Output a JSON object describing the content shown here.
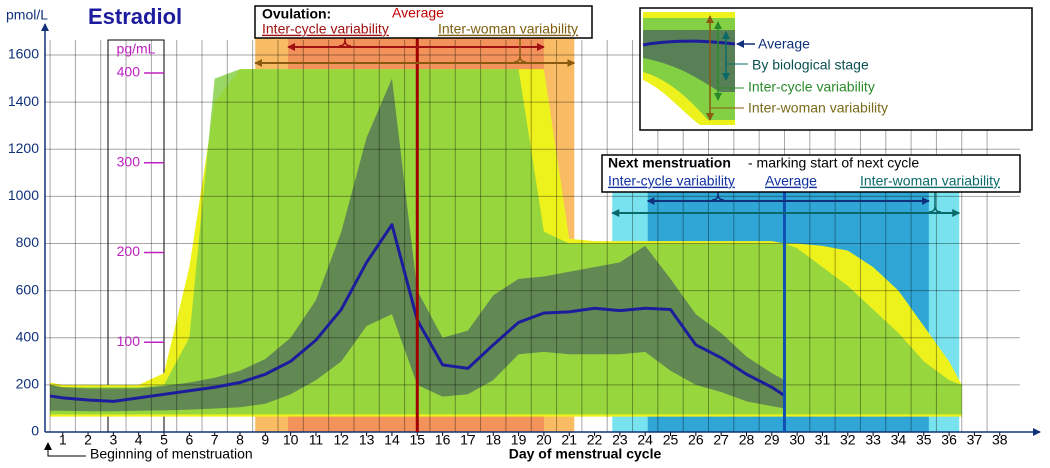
{
  "chart_data": {
    "type": "area",
    "title": "Estradiol",
    "y_label": "pmol/L",
    "y2_label": "pg/mL",
    "x_label": "Day of menstrual cycle",
    "x_note": "Beginning of menstruation",
    "x": [
      0.5,
      1,
      2,
      3,
      4,
      5,
      6,
      7,
      8,
      9,
      10,
      11,
      12,
      13,
      14,
      15,
      16,
      17,
      18,
      19,
      20,
      21,
      22,
      23,
      24,
      25,
      26,
      27,
      28,
      29,
      29.5,
      30,
      31,
      32,
      33,
      34,
      35,
      36,
      36.5
    ],
    "xlim": [
      0.3,
      38.8
    ],
    "xticks": [
      1,
      2,
      3,
      4,
      5,
      6,
      7,
      8,
      9,
      10,
      11,
      12,
      13,
      14,
      15,
      16,
      17,
      18,
      19,
      20,
      21,
      22,
      23,
      24,
      25,
      26,
      27,
      28,
      29,
      30,
      31,
      32,
      33,
      34,
      35,
      36,
      37,
      38
    ],
    "ylim": [
      0,
      1600
    ],
    "yticks": [
      0,
      200,
      400,
      600,
      800,
      1000,
      1200,
      1400,
      1600
    ],
    "y2lim": [
      0,
      420
    ],
    "y2ticks": [
      100,
      200,
      300,
      400
    ],
    "grid": true,
    "series": [
      {
        "name": "Inter-woman variability",
        "color": "#eef21c",
        "values": [
          210,
          200,
          200,
          200,
          200,
          250,
          700,
          1400,
          1540,
          1540,
          1540,
          1540,
          1540,
          1540,
          1540,
          1540,
          1540,
          1540,
          1540,
          1540,
          1540,
          820,
          810,
          810,
          810,
          810,
          810,
          810,
          810,
          810,
          800,
          800,
          790,
          770,
          700,
          600,
          450,
          300,
          200
        ],
        "low": [
          65,
          65,
          65,
          65,
          65,
          65,
          65,
          65,
          65,
          65,
          65,
          65,
          65,
          65,
          65,
          65,
          65,
          65,
          65,
          65,
          65,
          65,
          65,
          65,
          65,
          65,
          65,
          65,
          65,
          65,
          65,
          65,
          65,
          65,
          65,
          65,
          65,
          65,
          65
        ]
      },
      {
        "name": "Inter-cycle variability",
        "color": "#84d044",
        "values": [
          200,
          190,
          190,
          190,
          190,
          200,
          400,
          1500,
          1540,
          1540,
          1540,
          1540,
          1540,
          1540,
          1540,
          1540,
          1540,
          1540,
          1540,
          1540,
          850,
          800,
          800,
          800,
          800,
          800,
          800,
          800,
          800,
          800,
          800,
          780,
          700,
          620,
          520,
          420,
          300,
          220,
          200
        ],
        "low": [
          75,
          75,
          75,
          75,
          75,
          75,
          75,
          75,
          75,
          75,
          75,
          75,
          75,
          75,
          75,
          75,
          75,
          75,
          75,
          75,
          75,
          75,
          75,
          75,
          75,
          75,
          75,
          75,
          75,
          75,
          75,
          75,
          75,
          75,
          75,
          75,
          75,
          75,
          75
        ]
      },
      {
        "name": "By biological stage",
        "color": "#4d6b5c",
        "values": [
          200,
          190,
          185,
          185,
          185,
          195,
          210,
          230,
          260,
          310,
          400,
          560,
          850,
          1250,
          1500,
          600,
          400,
          430,
          580,
          650,
          660,
          680,
          700,
          720,
          790,
          650,
          500,
          420,
          320,
          250,
          220,
          null,
          null,
          null,
          null,
          null,
          null,
          null,
          null
        ],
        "low": [
          90,
          90,
          88,
          88,
          90,
          92,
          95,
          100,
          105,
          120,
          160,
          220,
          300,
          450,
          500,
          200,
          150,
          160,
          220,
          330,
          340,
          330,
          330,
          330,
          340,
          260,
          200,
          170,
          130,
          110,
          100,
          null,
          null,
          null,
          null,
          null,
          null,
          null,
          null
        ]
      },
      {
        "name": "Average",
        "color": "#1c1c9c",
        "values": [
          153,
          145,
          136,
          130,
          145,
          160,
          175,
          190,
          210,
          245,
          300,
          390,
          520,
          720,
          880,
          475,
          285,
          270,
          370,
          465,
          505,
          510,
          525,
          515,
          525,
          520,
          370,
          315,
          245,
          190,
          155,
          null,
          null,
          null,
          null,
          null,
          null,
          null,
          null
        ]
      }
    ],
    "annotations": {
      "ovulation": {
        "title": "Ovulation:",
        "average_label": "Average",
        "average": 15,
        "inter_cycle_label": "Inter-cycle variability",
        "inter_cycle": [
          9.9,
          20.0
        ],
        "inter_woman_label": "Inter-woman variability",
        "inter_woman": [
          8.6,
          21.2
        ]
      },
      "next_menstruation": {
        "title": "Next menstruation",
        "subtitle": "- marking start of next cycle",
        "average_label": "Average",
        "average": 29.5,
        "inter_cycle_label": "Inter-cycle variability",
        "inter_cycle": [
          24.1,
          35.2
        ],
        "inter_woman_label": "Inter-woman variability",
        "inter_woman": [
          22.7,
          36.4
        ]
      }
    }
  }
}
